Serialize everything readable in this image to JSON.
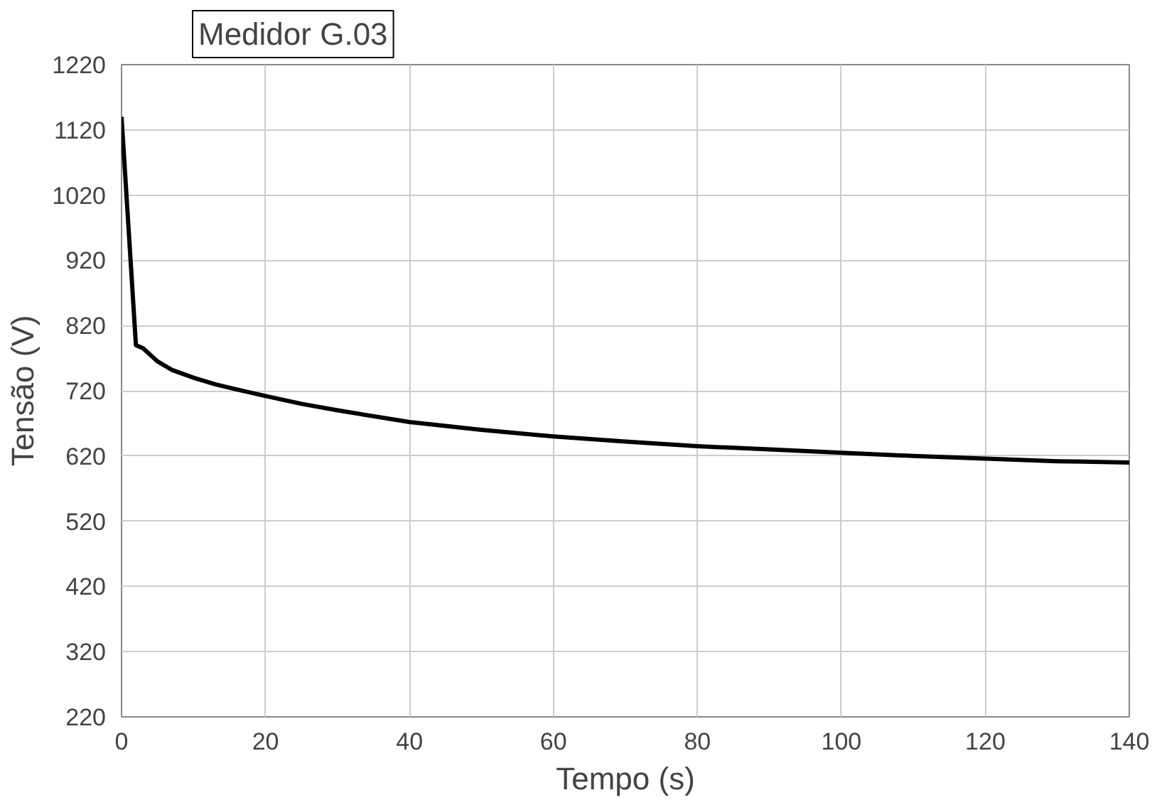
{
  "chart_data": {
    "type": "line",
    "title": "Medidor G.03",
    "xlabel": "Tempo (s)",
    "ylabel": "Tensão (V)",
    "x": [
      0,
      2,
      3,
      5,
      7,
      10,
      13,
      16,
      20,
      25,
      30,
      40,
      50,
      60,
      70,
      80,
      90,
      100,
      110,
      120,
      130,
      140
    ],
    "series": [
      {
        "color": "#000000",
        "values": [
          1140,
          790,
          785,
          765,
          752,
          740,
          730,
          722,
          712,
          700,
          690,
          672,
          660,
          650,
          642,
          635,
          630,
          625,
          620,
          616,
          612,
          610
        ]
      }
    ],
    "xlim": [
      0,
      140
    ],
    "xticks": [
      0,
      20,
      40,
      60,
      80,
      100,
      120,
      140
    ],
    "ylim": [
      220,
      1220
    ],
    "yticks": [
      220,
      320,
      420,
      520,
      620,
      720,
      820,
      920,
      1020,
      1120,
      1220
    ],
    "grid": true,
    "marker": "none",
    "line_style": "solid"
  }
}
